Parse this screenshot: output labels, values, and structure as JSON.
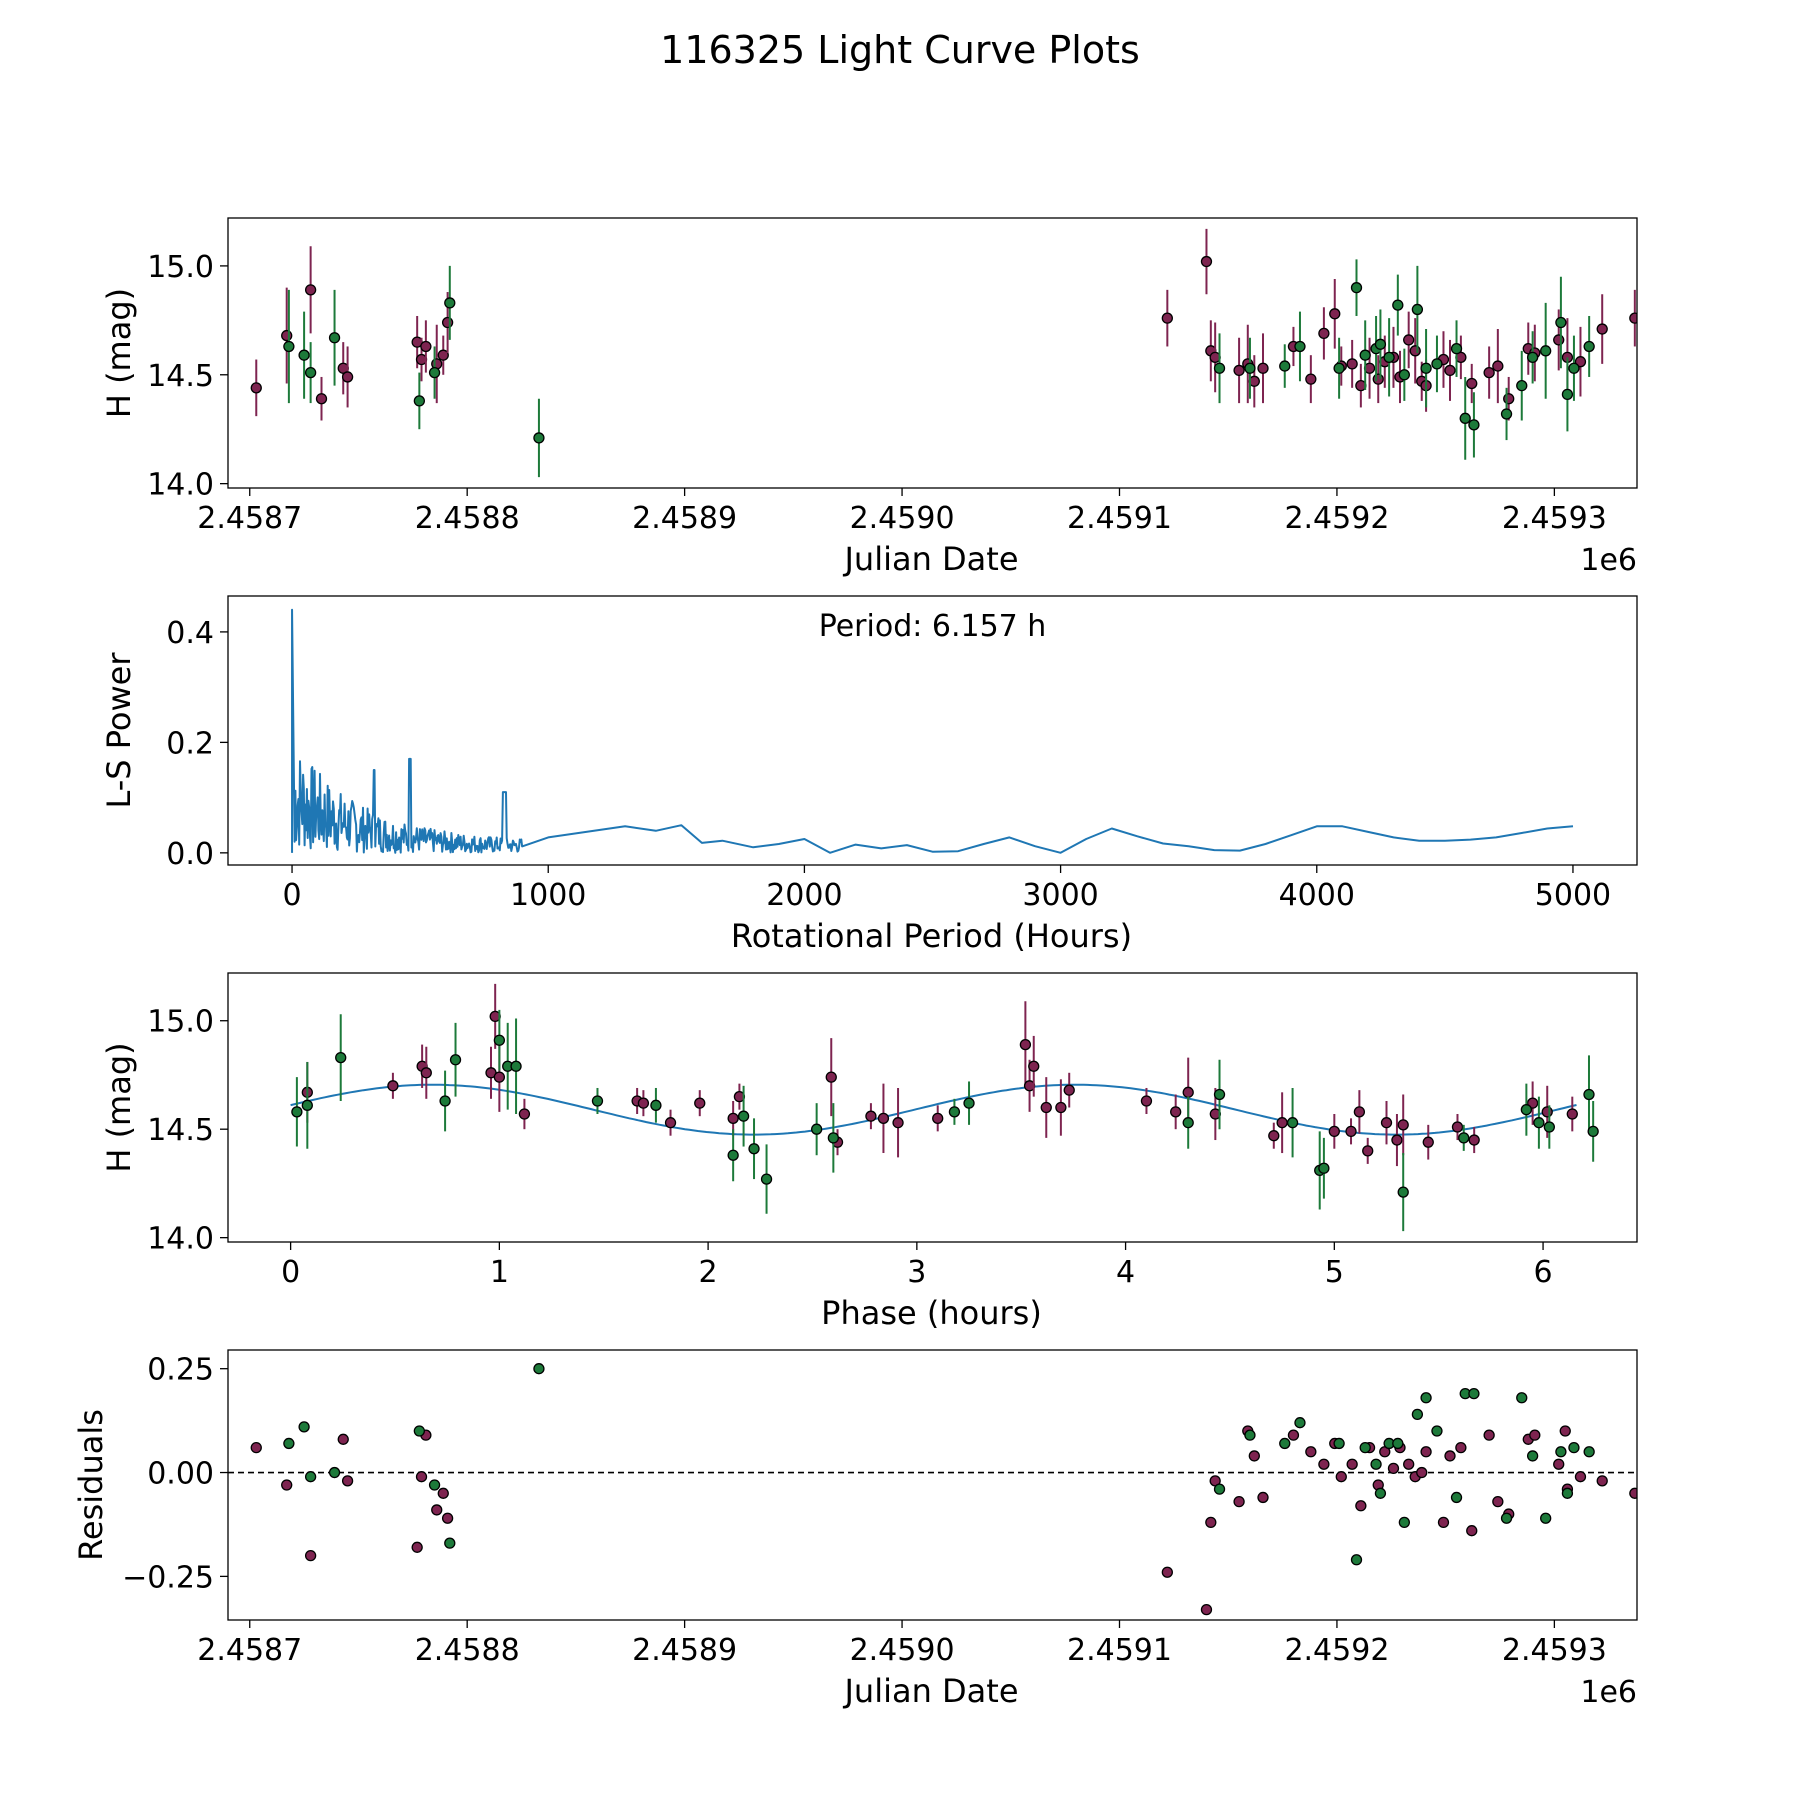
{
  "figure": {
    "title": "116325 Light Curve Plots"
  },
  "colors": {
    "green": "#1d7a3a",
    "maroon": "#7e2450",
    "curve": "#1f77b4",
    "axis": "#000000"
  },
  "chart_data": [
    {
      "id": "lightcurve",
      "type": "scatter",
      "xlabel": "Julian Date",
      "ylabel": "H (mag)",
      "offset_label": "1e6",
      "xlim": [
        2.45869,
        2.459338
      ],
      "ylim": [
        13.98,
        15.22
      ],
      "xticks": [
        2.4587,
        2.4588,
        2.4589,
        2.459,
        2.4591,
        2.4592,
        2.4593
      ],
      "xtick_labels": [
        "2.4587",
        "2.4588",
        "2.4589",
        "2.4590",
        "2.4591",
        "2.4592",
        "2.4593"
      ],
      "yticks": [
        14.0,
        14.5,
        15.0
      ],
      "ytick_labels": [
        "14.0",
        "14.5",
        "15.0"
      ],
      "series": [
        {
          "name": "maroon",
          "x": [
            2.458703,
            2.458717,
            2.458728,
            2.458733,
            2.458743,
            2.458745,
            2.458777,
            2.458779,
            2.458781,
            2.458786,
            2.458789,
            2.458791,
            2.459122,
            2.45914,
            2.459142,
            2.459144,
            2.459155,
            2.459159,
            2.459162,
            2.459166,
            2.45918,
            2.459188,
            2.459194,
            2.459199,
            2.459202,
            2.459207,
            2.459211,
            2.459215,
            2.459219,
            2.459222,
            2.459226,
            2.459229,
            2.459233,
            2.459236,
            2.459239,
            2.459241,
            2.459249,
            2.459252,
            2.459257,
            2.459262,
            2.45927,
            2.459274,
            2.459279,
            2.459288,
            2.459291,
            2.459302,
            2.459306,
            2.459312,
            2.459322,
            2.459337
          ],
          "y": [
            14.44,
            14.68,
            14.89,
            14.39,
            14.53,
            14.49,
            14.65,
            14.57,
            14.63,
            14.55,
            14.59,
            14.74,
            14.76,
            15.02,
            14.61,
            14.58,
            14.52,
            14.55,
            14.47,
            14.53,
            14.63,
            14.48,
            14.69,
            14.78,
            14.54,
            14.55,
            14.45,
            14.53,
            14.48,
            14.56,
            14.58,
            14.49,
            14.66,
            14.61,
            14.47,
            14.45,
            14.57,
            14.52,
            14.58,
            14.46,
            14.51,
            14.54,
            14.39,
            14.62,
            14.6,
            14.66,
            14.58,
            14.56,
            14.71,
            14.76
          ],
          "err": [
            0.13,
            0.22,
            0.2,
            0.1,
            0.12,
            0.14,
            0.12,
            0.1,
            0.12,
            0.18,
            0.09,
            0.14,
            0.13,
            0.15,
            0.14,
            0.16,
            0.15,
            0.18,
            0.12,
            0.16,
            0.09,
            0.11,
            0.12,
            0.16,
            0.09,
            0.11,
            0.1,
            0.14,
            0.11,
            0.12,
            0.14,
            0.12,
            0.13,
            0.15,
            0.09,
            0.12,
            0.13,
            0.14,
            0.1,
            0.09,
            0.12,
            0.17,
            0.1,
            0.12,
            0.13,
            0.14,
            0.18,
            0.16,
            0.16,
            0.13
          ]
        },
        {
          "name": "green",
          "x": [
            2.458718,
            2.458725,
            2.458728,
            2.458739,
            2.458778,
            2.458785,
            2.458792,
            2.458833,
            2.459146,
            2.45916,
            2.459176,
            2.459183,
            2.459201,
            2.459209,
            2.459213,
            2.459218,
            2.45922,
            2.459224,
            2.459228,
            2.459231,
            2.459237,
            2.459241,
            2.459246,
            2.459255,
            2.459259,
            2.459263,
            2.459278,
            2.459285,
            2.45929,
            2.459296,
            2.459303,
            2.459306,
            2.459309,
            2.459316
          ],
          "y": [
            14.63,
            14.59,
            14.51,
            14.67,
            14.38,
            14.51,
            14.83,
            14.21,
            14.53,
            14.53,
            14.54,
            14.63,
            14.53,
            14.9,
            14.59,
            14.62,
            14.64,
            14.58,
            14.82,
            14.5,
            14.8,
            14.53,
            14.55,
            14.62,
            14.3,
            14.27,
            14.32,
            14.45,
            14.58,
            14.61,
            14.74,
            14.41,
            14.53,
            14.63
          ],
          "err": [
            0.26,
            0.2,
            0.14,
            0.22,
            0.13,
            0.12,
            0.17,
            0.18,
            0.16,
            0.14,
            0.1,
            0.16,
            0.14,
            0.13,
            0.16,
            0.15,
            0.16,
            0.18,
            0.14,
            0.12,
            0.2,
            0.18,
            0.13,
            0.13,
            0.19,
            0.15,
            0.12,
            0.16,
            0.12,
            0.22,
            0.21,
            0.17,
            0.15,
            0.14
          ]
        }
      ]
    },
    {
      "id": "periodogram",
      "type": "line",
      "xlabel": "Rotational Period (Hours)",
      "ylabel": "L-S Power",
      "annotation": "Period: 6.157 h",
      "xlim": [
        -250,
        5250
      ],
      "ylim": [
        -0.022,
        0.465
      ],
      "xticks": [
        0,
        1000,
        2000,
        3000,
        4000,
        5000
      ],
      "xtick_labels": [
        "0",
        "1000",
        "2000",
        "3000",
        "4000",
        "5000"
      ],
      "yticks": [
        0.0,
        0.2,
        0.4
      ],
      "ytick_labels": [
        "0.0",
        "0.2",
        "0.4"
      ],
      "x": [
        0,
        1000,
        1300,
        1420,
        1520,
        1600,
        1680,
        1800,
        1900,
        2000,
        2100,
        2200,
        2300,
        2400,
        2500,
        2600,
        2700,
        2800,
        2900,
        3000,
        3100,
        3200,
        3300,
        3400,
        3500,
        3600,
        3700,
        3800,
        3900,
        4000,
        4100,
        4200,
        4300,
        4400,
        4500,
        4600,
        4700,
        4800,
        4900,
        5000
      ],
      "values": [
        0.0,
        0.028,
        0.048,
        0.04,
        0.05,
        0.018,
        0.022,
        0.01,
        0.016,
        0.025,
        0.0,
        0.015,
        0.008,
        0.014,
        0.002,
        0.003,
        0.016,
        0.028,
        0.012,
        0.0,
        0.025,
        0.044,
        0.03,
        0.017,
        0.012,
        0.005,
        0.004,
        0.016,
        0.032,
        0.048,
        0.048,
        0.038,
        0.028,
        0.022,
        0.022,
        0.024,
        0.028,
        0.036,
        0.044,
        0.048
      ],
      "peak": {
        "x": 6.157,
        "y": 0.44
      }
    },
    {
      "id": "phased",
      "type": "scatter",
      "xlabel": "Phase (hours)",
      "ylabel": "H (mag)",
      "xlim": [
        -0.3,
        6.45
      ],
      "ylim": [
        13.98,
        15.22
      ],
      "xticks": [
        0,
        1,
        2,
        3,
        4,
        5,
        6
      ],
      "xtick_labels": [
        "0",
        "1",
        "2",
        "3",
        "4",
        "5",
        "6"
      ],
      "yticks": [
        14.0,
        14.5,
        15.0
      ],
      "ytick_labels": [
        "14.0",
        "14.5",
        "15.0"
      ],
      "model": {
        "period": 3.0785,
        "mean": 14.59,
        "amp": 0.115,
        "peak_phase": 0.68
      },
      "series": [
        {
          "name": "maroon",
          "x": [
            0.08,
            0.49,
            0.63,
            0.65,
            0.96,
            0.98,
            1.0,
            1.12,
            1.66,
            1.69,
            1.82,
            1.96,
            2.12,
            2.15,
            2.59,
            2.62,
            2.78,
            2.84,
            2.91,
            3.1,
            3.52,
            3.54,
            3.56,
            3.62,
            3.69,
            3.73,
            4.1,
            4.24,
            4.3,
            4.43,
            4.71,
            4.75,
            5.0,
            5.08,
            5.12,
            5.16,
            5.25,
            5.3,
            5.33,
            5.45,
            5.59,
            5.67,
            5.95,
            6.02,
            6.14
          ],
          "y": [
            14.67,
            14.7,
            14.79,
            14.76,
            14.76,
            15.02,
            14.74,
            14.57,
            14.63,
            14.62,
            14.53,
            14.62,
            14.55,
            14.65,
            14.74,
            14.44,
            14.56,
            14.55,
            14.53,
            14.55,
            14.89,
            14.7,
            14.79,
            14.6,
            14.6,
            14.68,
            14.63,
            14.58,
            14.67,
            14.57,
            14.47,
            14.53,
            14.49,
            14.49,
            14.58,
            14.4,
            14.53,
            14.45,
            14.52,
            14.44,
            14.51,
            14.45,
            14.62,
            14.58,
            14.57
          ],
          "err": [
            0.14,
            0.06,
            0.1,
            0.12,
            0.12,
            0.15,
            0.16,
            0.07,
            0.06,
            0.06,
            0.06,
            0.06,
            0.08,
            0.06,
            0.18,
            0.06,
            0.06,
            0.16,
            0.16,
            0.06,
            0.2,
            0.12,
            0.14,
            0.14,
            0.13,
            0.08,
            0.06,
            0.08,
            0.16,
            0.12,
            0.06,
            0.14,
            0.08,
            0.06,
            0.1,
            0.06,
            0.1,
            0.12,
            0.14,
            0.08,
            0.06,
            0.06,
            0.1,
            0.12,
            0.08
          ]
        },
        {
          "name": "green",
          "x": [
            0.03,
            0.08,
            0.24,
            0.74,
            0.79,
            1.0,
            1.04,
            1.08,
            1.47,
            1.75,
            2.12,
            2.17,
            2.22,
            2.28,
            2.52,
            2.6,
            3.18,
            3.25,
            4.3,
            4.45,
            4.8,
            4.93,
            4.95,
            5.33,
            5.62,
            5.92,
            5.98,
            6.03,
            6.22,
            6.24
          ],
          "y": [
            14.58,
            14.61,
            14.83,
            14.63,
            14.82,
            14.91,
            14.79,
            14.79,
            14.63,
            14.61,
            14.38,
            14.56,
            14.41,
            14.27,
            14.5,
            14.46,
            14.58,
            14.62,
            14.53,
            14.66,
            14.53,
            14.31,
            14.32,
            14.21,
            14.46,
            14.59,
            14.53,
            14.51,
            14.66,
            14.49
          ],
          "err": [
            0.16,
            0.2,
            0.2,
            0.14,
            0.17,
            0.14,
            0.2,
            0.22,
            0.06,
            0.08,
            0.12,
            0.14,
            0.14,
            0.16,
            0.12,
            0.16,
            0.06,
            0.1,
            0.12,
            0.16,
            0.16,
            0.18,
            0.14,
            0.18,
            0.06,
            0.12,
            0.12,
            0.1,
            0.18,
            0.14
          ]
        }
      ]
    },
    {
      "id": "residuals",
      "type": "scatter",
      "xlabel": "Julian Date",
      "ylabel": "Residuals",
      "offset_label": "1e6",
      "xlim": [
        2.45869,
        2.459338
      ],
      "ylim": [
        -0.355,
        0.295
      ],
      "xticks": [
        2.4587,
        2.4588,
        2.4589,
        2.459,
        2.4591,
        2.4592,
        2.4593
      ],
      "xtick_labels": [
        "2.4587",
        "2.4588",
        "2.4589",
        "2.4590",
        "2.4591",
        "2.4592",
        "2.4593"
      ],
      "yticks": [
        -0.25,
        0.0,
        0.25
      ],
      "ytick_labels": [
        "−0.25",
        "0.00",
        "0.25"
      ],
      "reference_line": 0.0,
      "series": [
        {
          "name": "maroon",
          "x": [
            2.458703,
            2.458717,
            2.458743,
            2.458728,
            2.458745,
            2.458777,
            2.458779,
            2.458781,
            2.458786,
            2.458789,
            2.458791,
            2.459122,
            2.45914,
            2.459142,
            2.459144,
            2.459155,
            2.459159,
            2.459162,
            2.459166,
            2.45918,
            2.459188,
            2.459194,
            2.459199,
            2.459202,
            2.459207,
            2.459211,
            2.459215,
            2.459219,
            2.459222,
            2.459226,
            2.459229,
            2.459233,
            2.459236,
            2.459239,
            2.459241,
            2.459249,
            2.459252,
            2.459257,
            2.459262,
            2.45927,
            2.459274,
            2.459279,
            2.459288,
            2.459291,
            2.459302,
            2.459306,
            2.459312,
            2.459322,
            2.459337,
            2.459305
          ],
          "y": [
            0.06,
            -0.03,
            0.08,
            -0.2,
            -0.02,
            -0.18,
            -0.01,
            0.09,
            -0.09,
            -0.05,
            -0.11,
            -0.24,
            -0.33,
            -0.12,
            -0.02,
            -0.07,
            0.1,
            0.04,
            -0.06,
            0.09,
            0.05,
            0.02,
            0.07,
            -0.01,
            0.02,
            -0.08,
            0.06,
            -0.03,
            0.05,
            0.01,
            0.06,
            0.02,
            -0.01,
            0.0,
            0.05,
            -0.12,
            0.04,
            0.06,
            -0.14,
            0.09,
            -0.07,
            -0.1,
            0.08,
            0.09,
            0.02,
            -0.04,
            -0.01,
            -0.02,
            -0.05,
            0.1
          ],
          "err": [
            0,
            0,
            0,
            0,
            0,
            0,
            0,
            0,
            0,
            0,
            0,
            0,
            0,
            0,
            0,
            0,
            0,
            0,
            0,
            0,
            0,
            0,
            0,
            0,
            0,
            0,
            0,
            0,
            0,
            0,
            0,
            0,
            0,
            0,
            0,
            0,
            0,
            0,
            0,
            0,
            0,
            0,
            0,
            0,
            0,
            0,
            0,
            0,
            0,
            0
          ]
        },
        {
          "name": "green",
          "x": [
            2.458718,
            2.458725,
            2.458728,
            2.458739,
            2.458778,
            2.458785,
            2.458792,
            2.458833,
            2.459146,
            2.45916,
            2.459176,
            2.459183,
            2.459201,
            2.459209,
            2.459213,
            2.459218,
            2.45922,
            2.459224,
            2.459228,
            2.459231,
            2.459237,
            2.459241,
            2.459246,
            2.459255,
            2.459259,
            2.459263,
            2.459278,
            2.459285,
            2.45929,
            2.459296,
            2.459303,
            2.459306,
            2.459309,
            2.459316
          ],
          "y": [
            0.07,
            0.11,
            -0.01,
            0.0,
            0.1,
            -0.03,
            -0.17,
            0.25,
            -0.04,
            0.09,
            0.07,
            0.12,
            0.07,
            -0.21,
            0.06,
            0.02,
            -0.05,
            0.07,
            0.07,
            -0.12,
            0.14,
            0.18,
            0.1,
            -0.06,
            0.19,
            0.19,
            -0.11,
            0.18,
            0.04,
            -0.11,
            0.05,
            -0.05,
            0.06,
            0.05
          ],
          "err": [
            0,
            0,
            0,
            0,
            0,
            0,
            0,
            0,
            0,
            0,
            0,
            0,
            0,
            0,
            0,
            0,
            0,
            0,
            0,
            0,
            0,
            0,
            0,
            0,
            0,
            0,
            0,
            0,
            0,
            0,
            0,
            0,
            0,
            0
          ]
        }
      ]
    }
  ]
}
